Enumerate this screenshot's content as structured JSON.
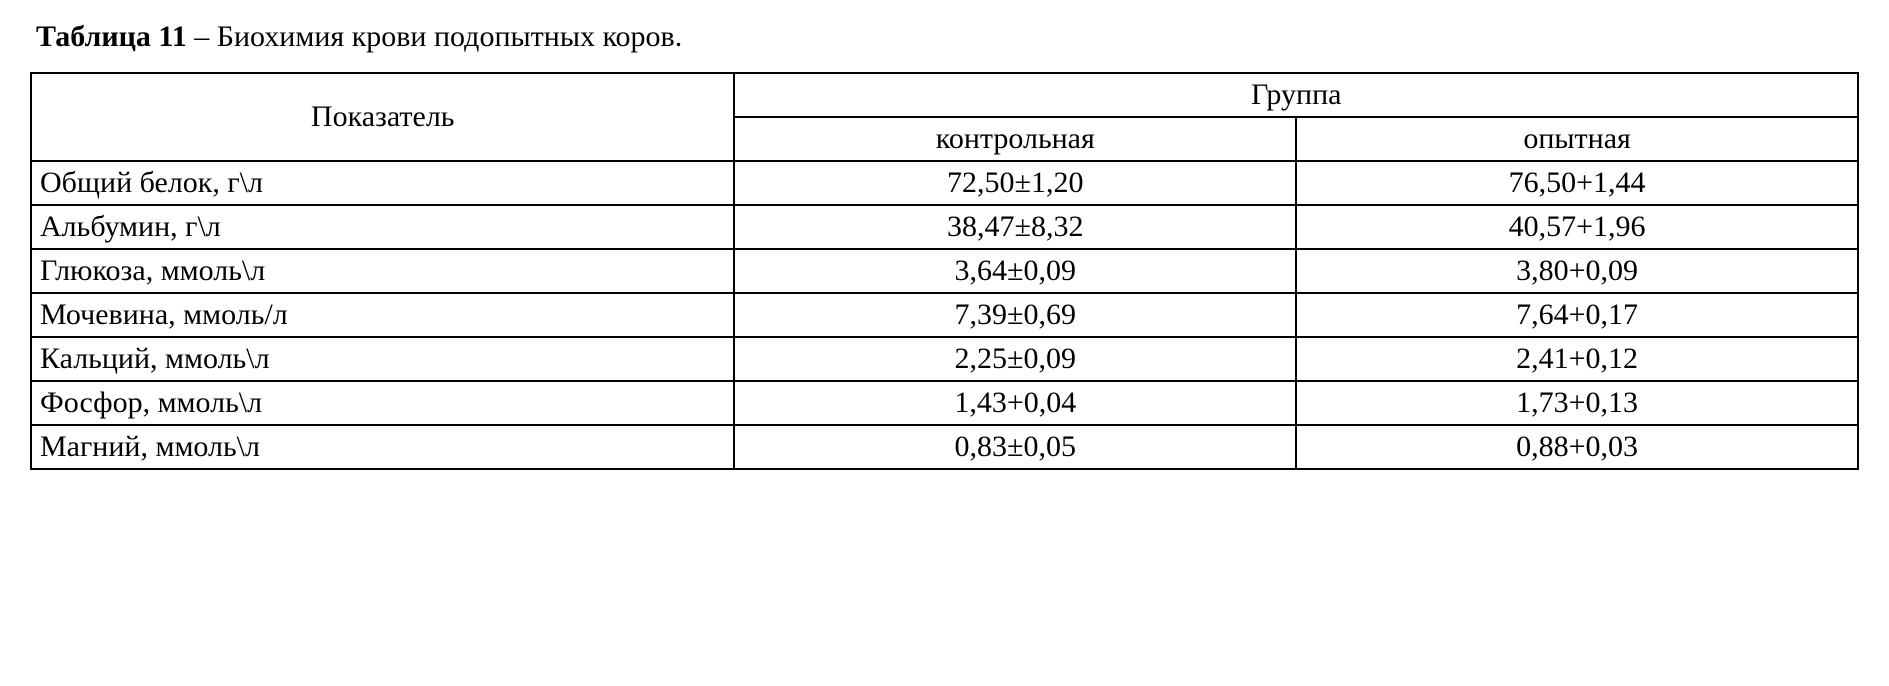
{
  "caption": {
    "bold_label": "Таблица 11",
    "rest": " – Биохимия крови подопытных коров."
  },
  "table": {
    "headers": {
      "indicator": "Показатель",
      "group": "Группа",
      "control": "контрольная",
      "experimental": "опытная"
    },
    "rows": [
      {
        "indicator": "Общий белок, г\\л",
        "control": "72,50±1,20",
        "experimental": "76,50+1,44"
      },
      {
        "indicator": "Альбумин, г\\л",
        "control": "38,47±8,32",
        "experimental": "40,57+1,96"
      },
      {
        "indicator": "Глюкоза, ммоль\\л",
        "control": "3,64±0,09",
        "experimental": "3,80+0,09"
      },
      {
        "indicator": "Мочевина, ммоль/л",
        "control": "7,39±0,69",
        "experimental": "7,64+0,17"
      },
      {
        "indicator": "Кальций, ммоль\\л",
        "control": "2,25±0,09",
        "experimental": "2,41+0,12"
      },
      {
        "indicator": "Фосфор, ммоль\\л",
        "control": "1,43+0,04",
        "experimental": "1,73+0,13"
      },
      {
        "indicator": "Магний, ммоль\\л",
        "control": "0,83±0,05",
        "experimental": "0,88+0,03"
      }
    ]
  },
  "styling": {
    "font_family": "Times New Roman",
    "caption_fontsize": 30,
    "cell_fontsize": 30,
    "border_color": "#000000",
    "border_width": 2,
    "background_color": "#ffffff",
    "text_color": "#000000",
    "column_widths_pct": [
      38.5,
      30.75,
      30.75
    ],
    "header_align": "center",
    "indicator_align": "left",
    "value_align": "center"
  }
}
